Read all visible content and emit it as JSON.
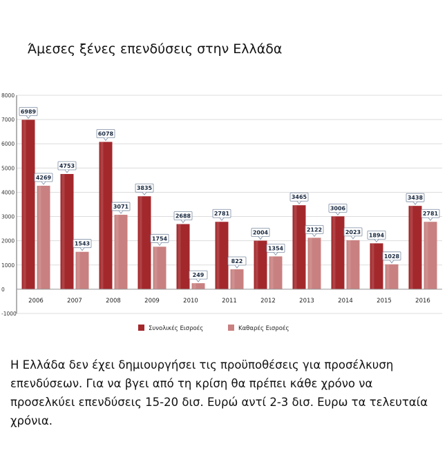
{
  "title": "Άμεσες ξένες επενδύσεις στην Ελλάδα",
  "caption": "Η Ελλάδα δεν έχει δημιουργήσει τις προϋποθέσεις για προσέλκυση επενδύσεων.  Για να βγει από τη κρίση θα πρέπει κάθε χρόνο να προσελκύει επενδύσεις 15-20 δισ. Ευρώ αντί 2-3 δισ. Ευρω τα τελευταία χρόνια.",
  "colors": {
    "total": "#a3282c",
    "net": "#c98080",
    "grid": "#dcdcdc",
    "axis": "#666666"
  },
  "chart_data": {
    "type": "bar",
    "categories": [
      "2006",
      "2007",
      "2008",
      "2009",
      "2010",
      "2011",
      "2012",
      "2013",
      "2014",
      "2015",
      "2016"
    ],
    "series": [
      {
        "name": "Συνολικές Εισροές",
        "values": [
          6989,
          4753,
          6078,
          3835,
          2688,
          2781,
          2004,
          3465,
          3006,
          1894,
          3438
        ]
      },
      {
        "name": "Καθαρές Εισροές",
        "values": [
          4269,
          1543,
          3071,
          1754,
          249,
          822,
          1354,
          2122,
          2023,
          1028,
          2781
        ]
      }
    ],
    "yticks": [
      -1000,
      0,
      1000,
      2000,
      3000,
      4000,
      5000,
      6000,
      7000,
      8000
    ],
    "ylim": [
      -1000,
      8000
    ],
    "grid": true,
    "legend": "bottom"
  }
}
